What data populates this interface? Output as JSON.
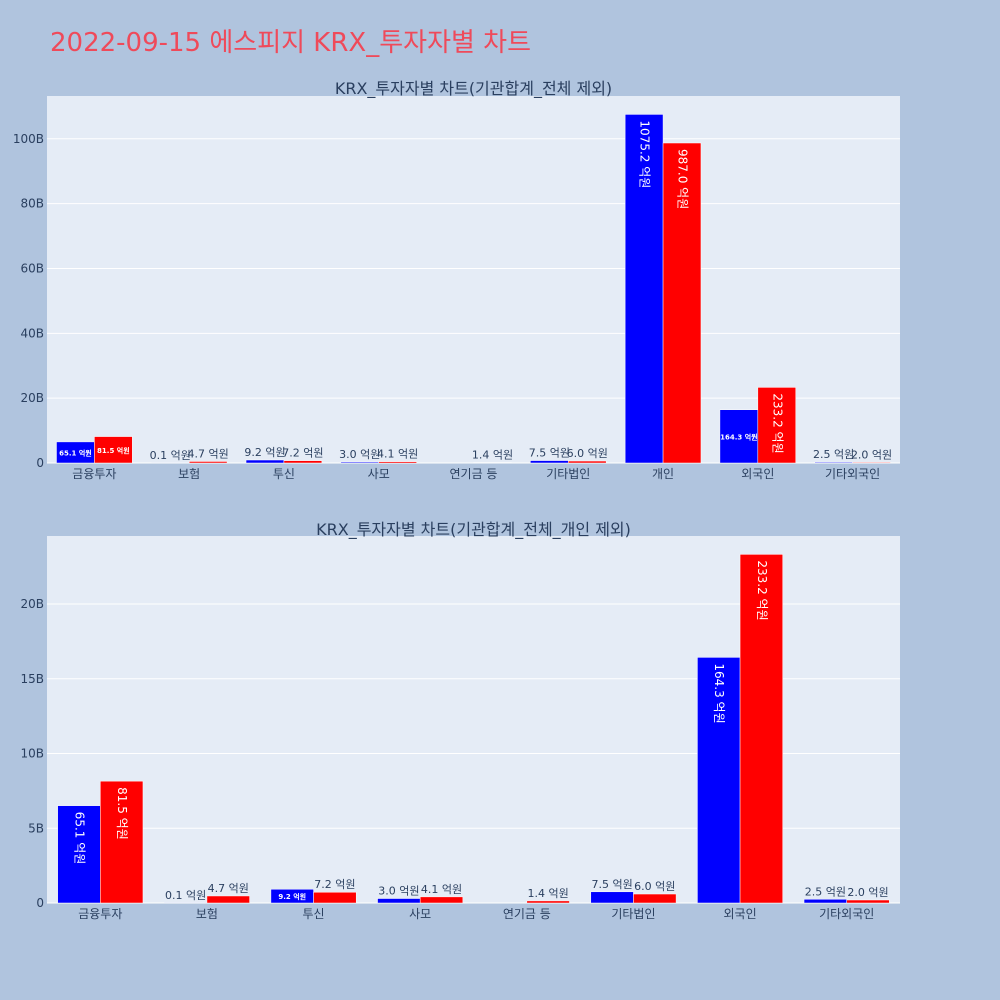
{
  "title": "2022-09-15 에스피지 KRX_투자자별 차트",
  "colors": {
    "series_a": "#0000ff",
    "series_b": "#ff0000",
    "plot_bg": "#e5ecf6",
    "page_bg": "#b0c4de",
    "title": "#ef4a5a"
  },
  "chart_data": [
    {
      "type": "bar",
      "title": "KRX_투자자별 차트(기관합계_전체 제외)",
      "categories": [
        "금융투자",
        "보험",
        "투신",
        "사모",
        "연기금 등",
        "기타법인",
        "개인",
        "외국인",
        "기타외국인"
      ],
      "series": [
        {
          "values": [
            6.51,
            0.01,
            0.92,
            0.3,
            0,
            0.75,
            107.52,
            16.43,
            0.25
          ],
          "labels": [
            "65.1 억원",
            "0.1 억원",
            "9.2 억원",
            "3.0 억원",
            "",
            "7.5 억원",
            "1075.2 억원",
            "164.3 억원",
            "2.5 억원"
          ]
        },
        {
          "values": [
            8.15,
            0.47,
            0.72,
            0.41,
            0.14,
            0.6,
            98.7,
            23.32,
            0.2
          ],
          "labels": [
            "81.5 억원",
            "4.7 억원",
            "7.2 억원",
            "4.1 억원",
            "1.4 억원",
            "6.0 억원",
            "987.0 억원",
            "233.2 억원",
            "2.0 억원"
          ]
        }
      ],
      "yticks": [
        0,
        20,
        40,
        60,
        80,
        100
      ],
      "ytick_labels": [
        "0",
        "20B",
        "40B",
        "60B",
        "80B",
        "100B"
      ],
      "ylim": [
        0,
        113.2
      ],
      "grid": true,
      "legend": "none"
    },
    {
      "type": "bar",
      "title": "KRX_투자자별 차트(기관합계_전체_개인 제외)",
      "categories": [
        "금융투자",
        "보험",
        "투신",
        "사모",
        "연기금 등",
        "기타법인",
        "외국인",
        "기타외국인"
      ],
      "series": [
        {
          "values": [
            6.51,
            0.01,
            0.92,
            0.3,
            0,
            0.75,
            16.43,
            0.25
          ],
          "labels": [
            "65.1 억원",
            "0.1 억원",
            "9.2 억원",
            "3.0 억원",
            "",
            "7.5 억원",
            "164.3 억원",
            "2.5 억원"
          ]
        },
        {
          "values": [
            8.15,
            0.47,
            0.72,
            0.41,
            0.14,
            0.6,
            23.32,
            0.2
          ],
          "labels": [
            "81.5 억원",
            "4.7 억원",
            "7.2 억원",
            "4.1 억원",
            "1.4 억원",
            "6.0 억원",
            "233.2 억원",
            "2.0 억원"
          ]
        }
      ],
      "yticks": [
        0,
        5,
        10,
        15,
        20
      ],
      "ytick_labels": [
        "0",
        "5B",
        "10B",
        "15B",
        "20B"
      ],
      "ylim": [
        0,
        24.55
      ],
      "grid": true,
      "legend": "none"
    }
  ]
}
